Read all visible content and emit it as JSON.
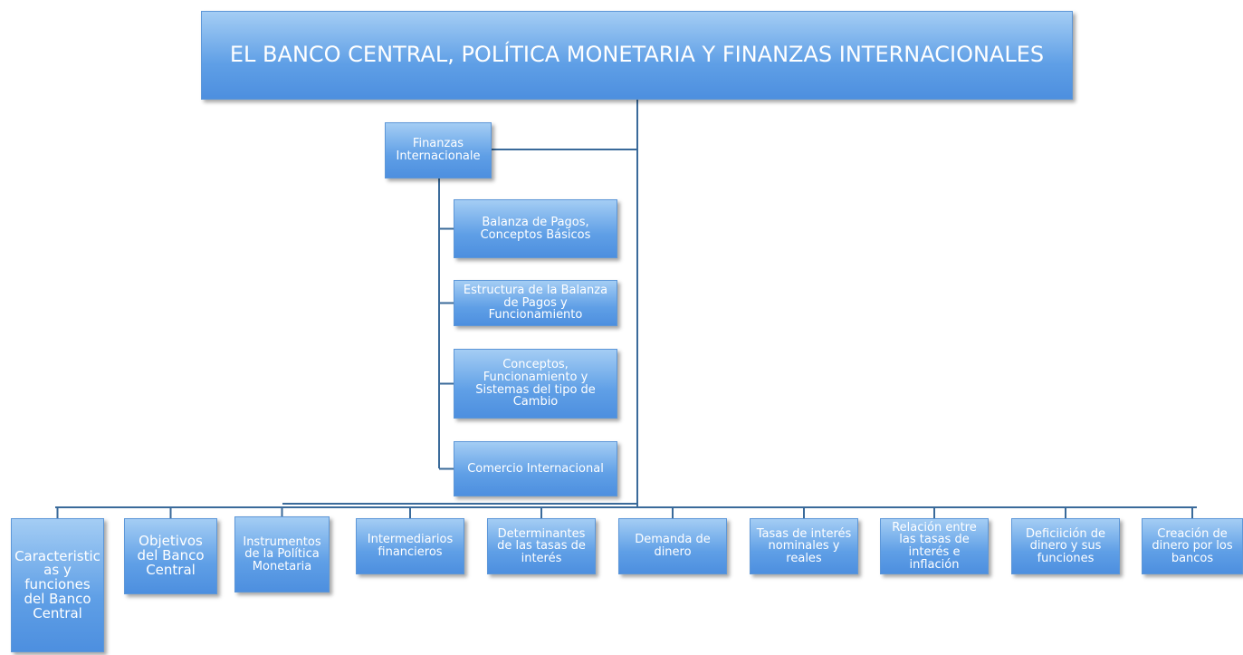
{
  "root": {
    "label": "EL BANCO CENTRAL,  POLÍTICA MONETARIA Y FINANZAS INTERNACIONALES"
  },
  "branch": {
    "label": "Finanzas Internacionale",
    "children": [
      "Balanza de Pagos, Conceptos Básicos",
      "Estructura  de la Balanza de Pagos y Funcionamiento",
      "Conceptos, Funcionamiento y Sistemas del tipo de Cambio",
      "Comercio Internacional"
    ]
  },
  "bottom": [
    "Caracteristicas y funciones del Banco Central",
    "Objetivos del Banco Central",
    "Instrumentos de la Política Monetaria",
    "Intermediarios financieros",
    "Determinantes de las tasas de interés",
    "Demanda de dinero",
    "Tasas de interés nominales y reales",
    "Relación entre las tasas de interés e inflación",
    "Deficiición de dinero y sus funciones",
    "Creación de dinero por los bancos"
  ]
}
